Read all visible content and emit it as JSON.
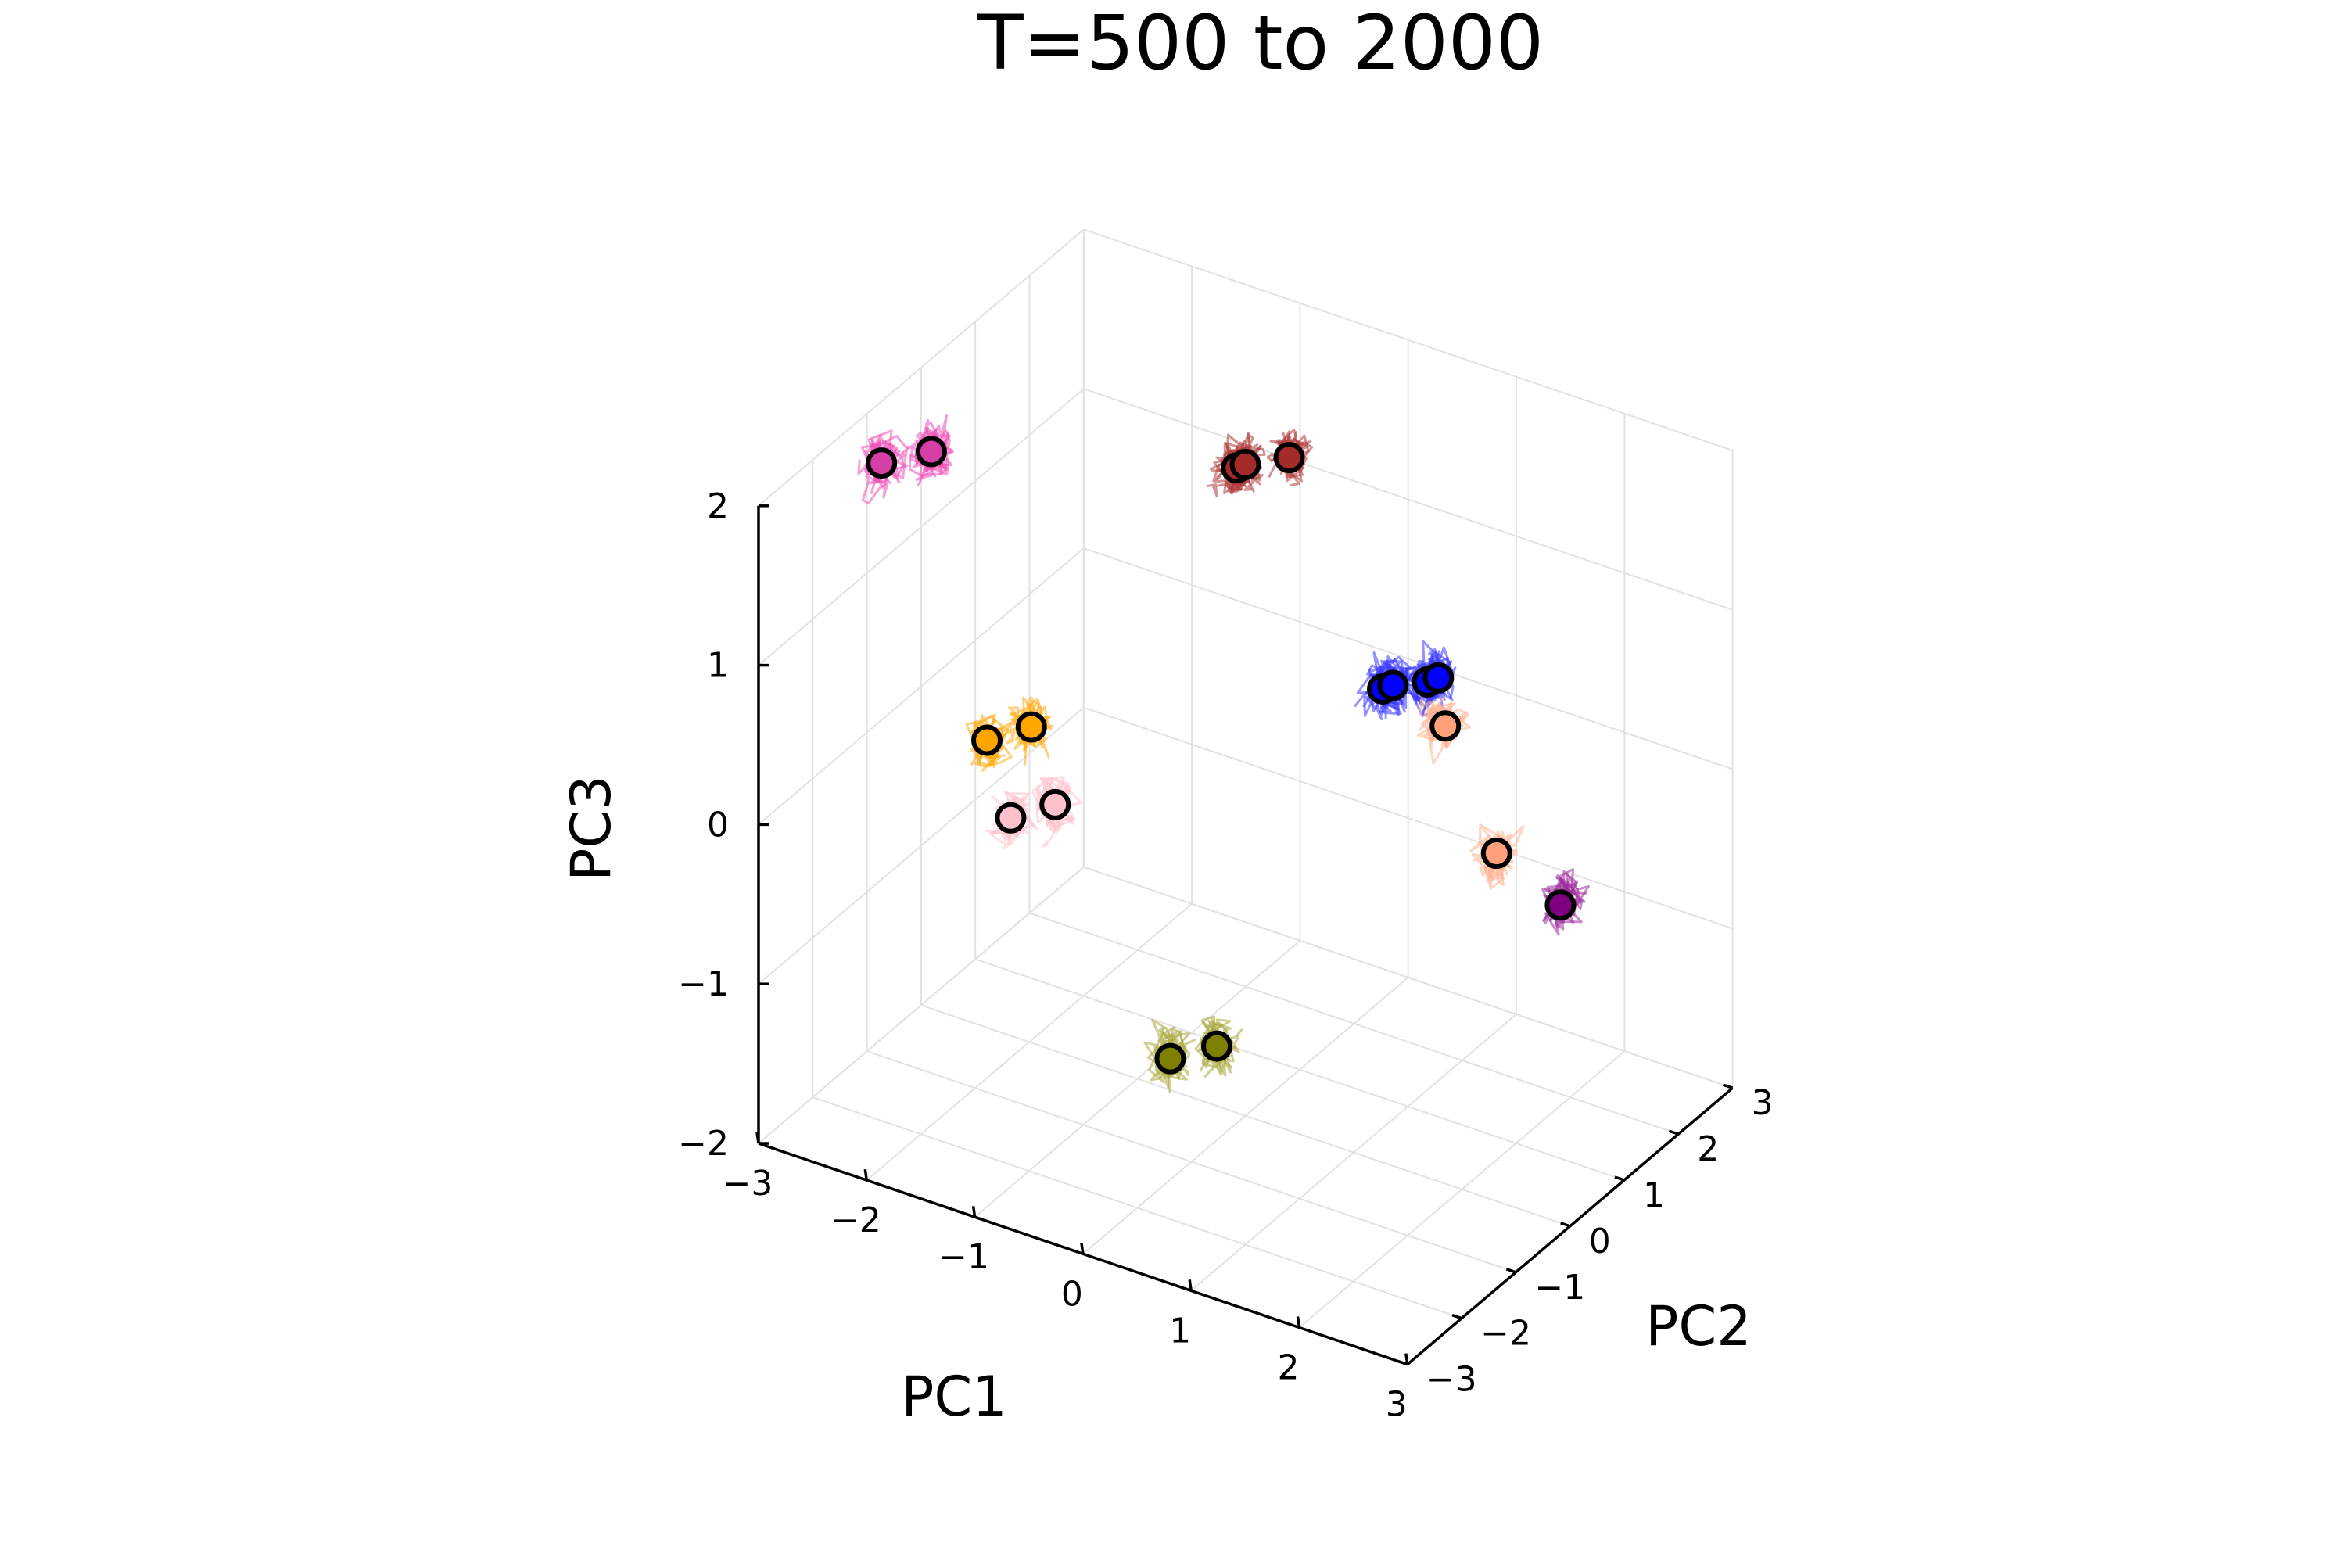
{
  "chart_data": {
    "type": "scatter",
    "projection": "3d",
    "title": "T=500 to 2000",
    "xlabel": "PC1",
    "ylabel": "PC2",
    "zlabel": "PC3",
    "xlim": [
      -3,
      3
    ],
    "ylim": [
      -3,
      3
    ],
    "zlim": [
      -2,
      2
    ],
    "x_ticks": [
      "−3",
      "−2",
      "−1",
      "0",
      "1",
      "2",
      "3"
    ],
    "y_ticks": [
      "−3",
      "−2",
      "−1",
      "0",
      "1",
      "2",
      "3"
    ],
    "z_ticks": [
      "−2",
      "−1",
      "0",
      "1",
      "2"
    ],
    "grid": true,
    "legend": "none",
    "marker": "open circle with black edge, filled with series color",
    "series": [
      {
        "color": "#d63fa8",
        "trail": "#ee4fb8",
        "points": [
          [
            -2.62,
            -1.49,
            1.92
          ],
          [
            -2.38,
            -1.05,
            1.92
          ]
        ]
      },
      {
        "color": "#ffa500",
        "trail": "#ffac12",
        "points": [
          [
            -1.64,
            -1.5,
            0.41
          ],
          [
            -1.45,
            -1.06,
            0.41
          ]
        ]
      },
      {
        "color": "#ffc0cb",
        "trail": "#ffc3cc",
        "points": [
          [
            -1.4,
            -1.54,
            -0.01
          ],
          [
            -1.21,
            -1.1,
            -0.01
          ]
        ]
      },
      {
        "color": "#808000",
        "trail": "#a9aa3f",
        "points": [
          [
            0.05,
            -1.49,
            -1.2
          ],
          [
            0.26,
            -1.05,
            -1.2
          ]
        ]
      },
      {
        "color": "#a52a2a",
        "trail": "#b03a3a",
        "points": [
          [
            -1.24,
            2.31,
            1.11
          ],
          [
            -1.21,
            2.41,
            1.11
          ],
          [
            -0.85,
            2.5,
            1.21
          ]
        ]
      },
      {
        "color": "#0000ff",
        "trail": "#3a3aff",
        "points": [
          [
            0.24,
            2.05,
            0.14
          ],
          [
            0.28,
            2.16,
            0.14
          ],
          [
            0.58,
            2.2,
            0.22
          ],
          [
            0.62,
            2.32,
            0.22
          ]
        ]
      },
      {
        "color": "#ffa07a",
        "trail": "#ffb28f",
        "points": [
          [
            0.99,
            1.71,
            0.18
          ],
          [
            1.81,
            1.02,
            -0.23
          ]
        ]
      },
      {
        "color": "#800080",
        "trail": "#9a2a9a",
        "points": [
          [
            2.46,
            0.9,
            -0.37
          ]
        ]
      }
    ]
  }
}
